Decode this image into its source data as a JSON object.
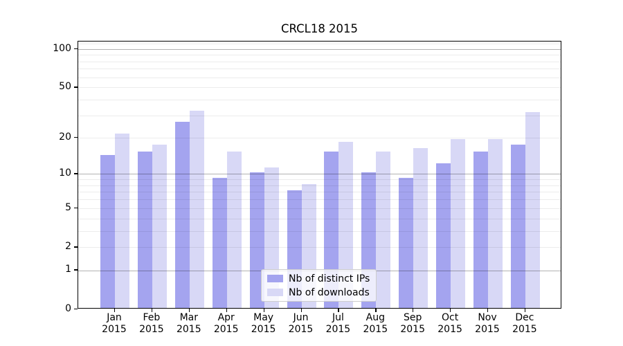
{
  "title": "CRCL18 2015",
  "chart_data": {
    "type": "bar",
    "title": "CRCL18 2015",
    "categories": [
      "Jan",
      "Feb",
      "Mar",
      "Apr",
      "May",
      "Jun",
      "Jul",
      "Aug",
      "Sep",
      "Oct",
      "Nov",
      "Dec"
    ],
    "category_year": "2015",
    "series": [
      {
        "name": "Nb of distinct IPs",
        "color": "#a4a4ef",
        "values": [
          14,
          15,
          26,
          9,
          10,
          7,
          15,
          10,
          9,
          12,
          15,
          17
        ]
      },
      {
        "name": "Nb of downloads",
        "color": "#d8d8f6",
        "values": [
          21,
          17,
          32,
          15,
          11,
          8,
          18,
          15,
          16,
          19,
          19,
          31
        ]
      }
    ],
    "y_scale": "symlog (y proportional to ln(1+v))",
    "y_tick_labels": [
      "100",
      "50",
      "20",
      "10",
      "5",
      "2",
      "1",
      "0"
    ],
    "y_tick_values": [
      100,
      50,
      20,
      10,
      5,
      2,
      1,
      0
    ],
    "y_minor_grid_values": [
      2,
      3,
      4,
      5,
      6,
      7,
      8,
      9,
      20,
      30,
      40,
      50,
      60,
      70,
      80,
      90,
      110
    ],
    "y_major_grid_values": [
      1,
      10,
      100
    ],
    "ylim": [
      0,
      115
    ],
    "grid": true,
    "legend_position": "lower-center",
    "legend_entries": [
      "Nb of distinct IPs",
      "Nb of downloads"
    ]
  },
  "colors": {
    "bar_dark": "#a4a4ef",
    "bar_light": "#d8d8f6",
    "axis": "#000000",
    "legend_border": "#cccccc"
  }
}
